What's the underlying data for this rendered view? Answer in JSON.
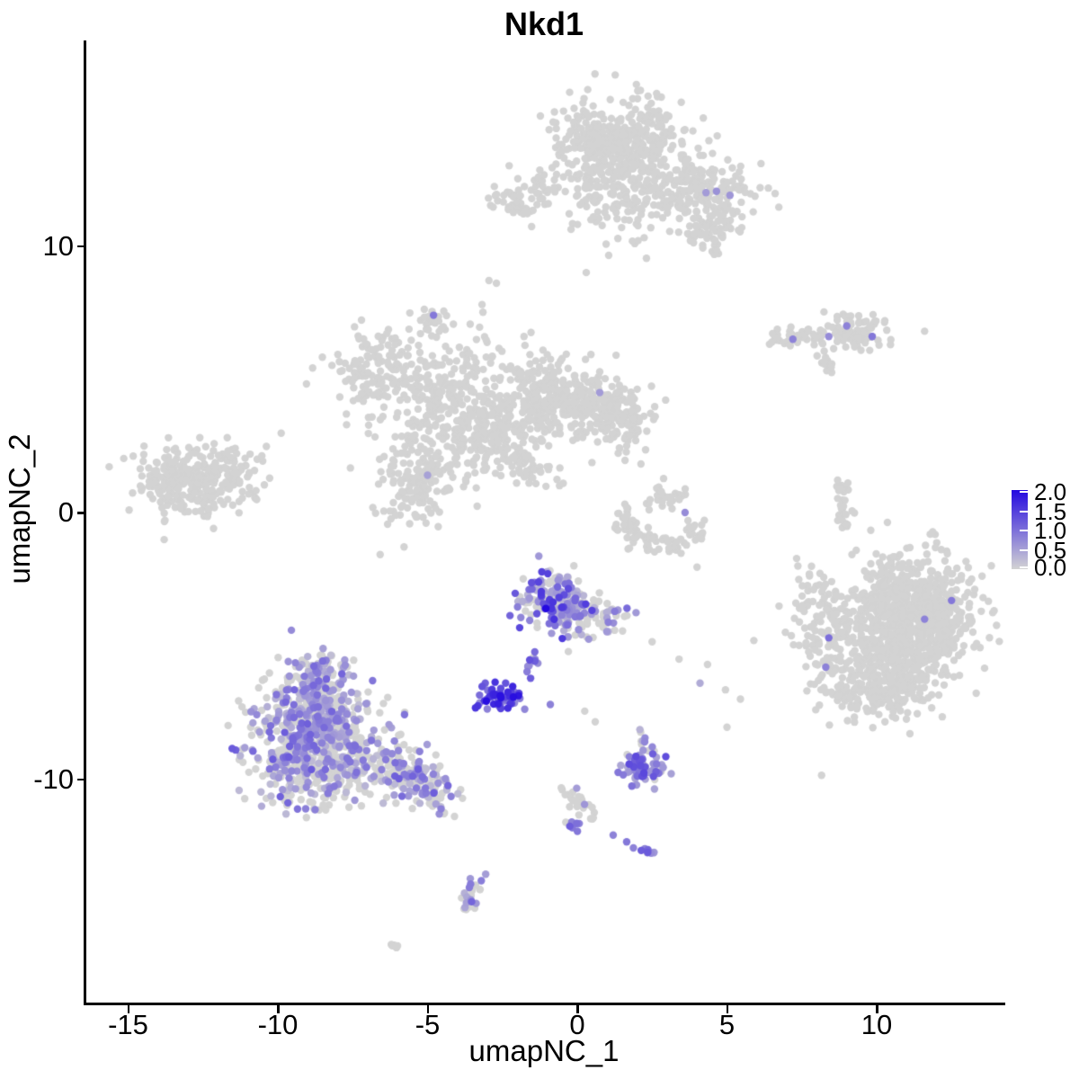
{
  "chart_data": {
    "type": "scatter",
    "title": "Nkd1",
    "xlabel": "umapNC_1",
    "ylabel": "umapNC_2",
    "x_ticks": [
      -15,
      -10,
      -5,
      0,
      5,
      10
    ],
    "x_tick_labels": [
      "-15",
      "-10",
      "-5",
      "0",
      "5",
      "10"
    ],
    "y_ticks": [
      10,
      0,
      -10
    ],
    "y_tick_labels": [
      "10",
      "0",
      "-10"
    ],
    "xlim": [
      -16.4,
      14.2
    ],
    "ylim": [
      -18.4,
      17.7
    ],
    "grid": false,
    "legend_position": "right",
    "legend_tick_labels": [
      "2.0",
      "1.5",
      "1.0",
      "0.5",
      "0.0"
    ],
    "colorscale": {
      "low": "#d3d3d3",
      "high": "#2409e0",
      "domain": [
        0,
        2
      ]
    },
    "point_radius": 4.2,
    "seed": 7,
    "clusters": [
      {
        "name": "top-main-upper",
        "shape": "gauss",
        "cx": 1.5,
        "cy": 14.0,
        "sx": 1.05,
        "sy": 0.75,
        "n": 380,
        "frac": 0,
        "vmin": 0,
        "vmax": 0
      },
      {
        "name": "top-main-right",
        "shape": "gauss",
        "cx": 3.6,
        "cy": 12.2,
        "sx": 1.05,
        "sy": 0.55,
        "n": 200,
        "frac": 0,
        "vmin": 0,
        "vmax": 0
      },
      {
        "name": "top-main-left",
        "shape": "gauss",
        "cx": 0.9,
        "cy": 12.5,
        "sx": 0.6,
        "sy": 0.6,
        "n": 80,
        "frac": 0,
        "vmin": 0,
        "vmax": 0
      },
      {
        "name": "top-left-blob",
        "shape": "gauss",
        "cx": -2.0,
        "cy": 11.7,
        "sx": 0.55,
        "sy": 0.35,
        "n": 45,
        "frac": 0,
        "vmin": 0,
        "vmax": 0
      },
      {
        "name": "top-left-blob2",
        "shape": "gauss",
        "cx": -1.0,
        "cy": 12.4,
        "sx": 0.3,
        "sy": 0.28,
        "n": 20,
        "frac": 0,
        "vmin": 0,
        "vmax": 0
      },
      {
        "name": "top-lower-lobe",
        "shape": "gauss",
        "cx": 4.4,
        "cy": 10.6,
        "sx": 0.55,
        "sy": 0.45,
        "n": 70,
        "frac": 0,
        "vmin": 0,
        "vmax": 0
      },
      {
        "name": "top-sparse-bottom",
        "shape": "gauss",
        "cx": 1.4,
        "cy": 11.2,
        "sx": 1.2,
        "sy": 0.55,
        "n": 60,
        "frac": 0,
        "vmin": 0,
        "vmax": 0
      },
      {
        "name": "small-mid-upper",
        "shape": "gauss",
        "cx": -4.75,
        "cy": 7.2,
        "sx": 0.28,
        "sy": 0.33,
        "n": 22,
        "frac": 0,
        "vmin": 0,
        "vmax": 0
      },
      {
        "name": "midleft-arm-top",
        "shape": "gauss",
        "cx": -6.4,
        "cy": 5.3,
        "sx": 0.85,
        "sy": 0.8,
        "n": 170,
        "frac": 0,
        "vmin": 0,
        "vmax": 0
      },
      {
        "name": "midleft-core",
        "shape": "gauss",
        "cx": -4.0,
        "cy": 3.8,
        "sx": 1.0,
        "sy": 0.9,
        "n": 220,
        "frac": 0,
        "vmin": 0,
        "vmax": 0
      },
      {
        "name": "midleft-node1",
        "shape": "gauss",
        "cx": -0.9,
        "cy": 4.3,
        "sx": 0.8,
        "sy": 0.7,
        "n": 230,
        "frac": 0,
        "vmin": 0,
        "vmax": 0
      },
      {
        "name": "midleft-node2",
        "shape": "gauss",
        "cx": 0.9,
        "cy": 3.9,
        "sx": 0.65,
        "sy": 0.65,
        "n": 150,
        "frac": 0,
        "vmin": 0,
        "vmax": 0
      },
      {
        "name": "midleft-lower",
        "shape": "gauss",
        "cx": -5.3,
        "cy": 1.3,
        "sx": 0.75,
        "sy": 0.9,
        "n": 170,
        "frac": 0,
        "vmin": 0,
        "vmax": 0
      },
      {
        "name": "midleft-mid",
        "shape": "gauss",
        "cx": -2.8,
        "cy": 2.9,
        "sx": 0.7,
        "sy": 0.8,
        "n": 110,
        "frac": 0,
        "vmin": 0,
        "vmax": 0
      },
      {
        "name": "midleft-streak",
        "shape": "line",
        "x1": -2.4,
        "y1": 2.6,
        "x2": -1.1,
        "y2": 0.9,
        "w": 0.18,
        "n": 35,
        "frac": 0,
        "vmin": 0,
        "vmax": 0
      },
      {
        "name": "midleft-right-lobe",
        "shape": "gauss",
        "cx": 1.8,
        "cy": 3.2,
        "sx": 0.4,
        "sy": 0.5,
        "n": 50,
        "frac": 0,
        "vmin": 0,
        "vmax": 0
      },
      {
        "name": "midleft-sparse-top",
        "shape": "gauss",
        "cx": -3.4,
        "cy": 5.7,
        "sx": 1.5,
        "sy": 0.75,
        "n": 70,
        "frac": 0,
        "vmin": 0,
        "vmax": 0
      },
      {
        "name": "midleft-sparse-low",
        "shape": "gauss",
        "cx": -2.0,
        "cy": 1.6,
        "sx": 1.0,
        "sy": 0.55,
        "n": 28,
        "frac": 0,
        "vmin": 0,
        "vmax": 0
      },
      {
        "name": "farleft",
        "shape": "gauss",
        "cx": -12.9,
        "cy": 1.2,
        "sx": 1.05,
        "sy": 0.6,
        "n": 300,
        "frac": 0,
        "vmin": 0,
        "vmax": 0
      },
      {
        "name": "farleft-tail",
        "shape": "gauss",
        "cx": -11.0,
        "cy": 1.7,
        "sx": 0.5,
        "sy": 0.3,
        "n": 22,
        "frac": 0,
        "vmin": 0,
        "vmax": 0
      },
      {
        "name": "right-strip",
        "shape": "line",
        "x1": 6.5,
        "y1": 6.5,
        "x2": 8.2,
        "y2": 6.7,
        "w": 0.18,
        "n": 55,
        "frac": 0,
        "vmin": 0,
        "vmax": 0
      },
      {
        "name": "right-strip-blob",
        "shape": "gauss",
        "cx": 9.3,
        "cy": 6.8,
        "sx": 0.55,
        "sy": 0.35,
        "n": 90,
        "frac": 0,
        "vmin": 0,
        "vmax": 0
      },
      {
        "name": "right-strip-tail",
        "shape": "line",
        "x1": 8.0,
        "y1": 5.9,
        "x2": 8.6,
        "y2": 5.3,
        "w": 0.1,
        "n": 12,
        "frac": 0,
        "vmin": 0,
        "vmax": 0
      },
      {
        "name": "right-vert-strip",
        "shape": "line",
        "x1": 8.75,
        "y1": 1.5,
        "x2": 8.95,
        "y2": -0.6,
        "w": 0.1,
        "n": 22,
        "frac": 0,
        "vmin": 0,
        "vmax": 0
      },
      {
        "name": "right-vert-blob",
        "shape": "gauss",
        "cx": 9.0,
        "cy": 0.3,
        "sx": 0.13,
        "sy": 0.4,
        "n": 10,
        "frac": 0,
        "vmin": 0,
        "vmax": 0
      },
      {
        "name": "right-big-core",
        "shape": "gauss",
        "cx": 11.2,
        "cy": -3.9,
        "sx": 1.15,
        "sy": 1.05,
        "n": 850,
        "frac": 0,
        "vmin": 0,
        "vmax": 0
      },
      {
        "name": "right-big-lower",
        "shape": "gauss",
        "cx": 10.3,
        "cy": -6.4,
        "sx": 0.85,
        "sy": 0.65,
        "n": 280,
        "frac": 0,
        "vmin": 0,
        "vmax": 0
      },
      {
        "name": "right-big-left",
        "shape": "gauss",
        "cx": 8.6,
        "cy": -4.8,
        "sx": 0.55,
        "sy": 1.1,
        "n": 110,
        "frac": 0,
        "vmin": 0,
        "vmax": 0
      },
      {
        "name": "right-big-left-sparse",
        "shape": "gauss",
        "cx": 7.9,
        "cy": -3.4,
        "sx": 0.5,
        "sy": 0.9,
        "n": 40,
        "frac": 0,
        "vmin": 0,
        "vmax": 0
      },
      {
        "name": "center-expr-core",
        "shape": "gauss",
        "cx": -0.75,
        "cy": -3.3,
        "sx": 0.6,
        "sy": 0.6,
        "n": 170,
        "frac": 0.6,
        "vmin": 0.3,
        "vmax": 1.6
      },
      {
        "name": "center-expr-arm",
        "shape": "gauss",
        "cx": 0.55,
        "cy": -3.9,
        "sx": 0.55,
        "sy": 0.42,
        "n": 70,
        "frac": 0.45,
        "vmin": 0.3,
        "vmax": 1.2
      },
      {
        "name": "center-trail",
        "shape": "line",
        "x1": -1.15,
        "y1": -4.8,
        "x2": -1.75,
        "y2": -6.3,
        "w": 0.12,
        "n": 11,
        "frac": 0.85,
        "vmin": 0.5,
        "vmax": 1.3
      },
      {
        "name": "dense-dark-clump",
        "shape": "gauss",
        "cx": -2.6,
        "cy": -6.9,
        "sx": 0.38,
        "sy": 0.24,
        "n": 65,
        "frac": 0.93,
        "vmin": 0.7,
        "vmax": 2.0
      },
      {
        "name": "bottomleft-apex",
        "shape": "gauss",
        "cx": -8.7,
        "cy": -5.9,
        "sx": 0.5,
        "sy": 0.45,
        "n": 55,
        "frac": 0.45,
        "vmin": 0.2,
        "vmax": 1.0
      },
      {
        "name": "bottomleft-top",
        "shape": "gauss",
        "cx": -8.8,
        "cy": -7.3,
        "sx": 0.85,
        "sy": 0.75,
        "n": 260,
        "frac": 0.45,
        "vmin": 0.2,
        "vmax": 1.1
      },
      {
        "name": "bottomleft-left",
        "shape": "gauss",
        "cx": -9.4,
        "cy": -8.9,
        "sx": 0.8,
        "sy": 0.85,
        "n": 280,
        "frac": 0.5,
        "vmin": 0.2,
        "vmax": 1.2
      },
      {
        "name": "bottomleft-mid",
        "shape": "gauss",
        "cx": -7.6,
        "cy": -8.9,
        "sx": 0.95,
        "sy": 0.85,
        "n": 260,
        "frac": 0.42,
        "vmin": 0.2,
        "vmax": 1.0
      },
      {
        "name": "bottomleft-tail",
        "shape": "line",
        "x1": -6.3,
        "y1": -9.5,
        "x2": -4.3,
        "y2": -10.7,
        "w": 0.4,
        "n": 150,
        "frac": 0.45,
        "vmin": 0.2,
        "vmax": 1.2
      },
      {
        "name": "bottomleft-bottom-sparse",
        "shape": "gauss",
        "cx": -8.6,
        "cy": -10.4,
        "sx": 0.7,
        "sy": 0.45,
        "n": 40,
        "frac": 0.3,
        "vmin": 0.2,
        "vmax": 0.9
      },
      {
        "name": "purple-mid-cluster",
        "shape": "gauss",
        "cx": 2.25,
        "cy": -9.6,
        "sx": 0.42,
        "sy": 0.3,
        "n": 70,
        "frac": 0.85,
        "vmin": 0.4,
        "vmax": 1.4
      },
      {
        "name": "purple-mid-top",
        "shape": "gauss",
        "cx": 2.15,
        "cy": -8.55,
        "sx": 0.12,
        "sy": 0.22,
        "n": 8,
        "frac": 0.5,
        "vmin": 0.3,
        "vmax": 0.8
      },
      {
        "name": "bottom-chain",
        "shape": "line",
        "x1": -0.6,
        "y1": -10.3,
        "x2": 0.75,
        "y2": -11.55,
        "w": 0.14,
        "n": 26,
        "frac": 0.1,
        "vmin": 0.3,
        "vmax": 0.7
      },
      {
        "name": "chain-purple1",
        "shape": "gauss",
        "cx": -0.15,
        "cy": -11.75,
        "sx": 0.16,
        "sy": 0.12,
        "n": 7,
        "frac": 0.9,
        "vmin": 0.5,
        "vmax": 1.2
      },
      {
        "name": "chain-purple2",
        "shape": "gauss",
        "cx": 2.3,
        "cy": -12.65,
        "sx": 0.18,
        "sy": 0.13,
        "n": 10,
        "frac": 0.9,
        "vmin": 0.5,
        "vmax": 1.3
      },
      {
        "name": "bottom-hook",
        "shape": "line",
        "x1": -3.4,
        "y1": -13.5,
        "x2": -3.75,
        "y2": -14.9,
        "w": 0.16,
        "n": 26,
        "frac": 0.6,
        "vmin": 0.3,
        "vmax": 1.1
      },
      {
        "name": "bottom-dash",
        "shape": "line",
        "x1": -6.35,
        "y1": -16.2,
        "x2": -5.95,
        "y2": -16.3,
        "w": 0.07,
        "n": 7,
        "frac": 0,
        "vmin": 0,
        "vmax": 0
      },
      {
        "name": "crescent",
        "shape": "arc",
        "cx": 2.9,
        "cy": 0.0,
        "rx": 1.4,
        "ry": 1.2,
        "a1": 180,
        "a2": 330,
        "w": 0.22,
        "n": 90,
        "frac": 0,
        "vmin": 0,
        "vmax": 0
      },
      {
        "name": "crescent-top-blob",
        "shape": "gauss",
        "cx": 3.1,
        "cy": 0.65,
        "sx": 0.33,
        "sy": 0.25,
        "n": 28,
        "frac": 0,
        "vmin": 0,
        "vmax": 0
      }
    ],
    "points": [
      [
        4.3,
        12.0,
        0.55
      ],
      [
        4.65,
        12.05,
        0.65
      ],
      [
        5.1,
        11.9,
        0.6
      ],
      [
        -4.8,
        7.4,
        0.9
      ],
      [
        0.75,
        4.5,
        0.55
      ],
      [
        -5.0,
        1.4,
        0.5
      ],
      [
        -1.05,
        -3.6,
        2.0
      ],
      [
        7.2,
        6.5,
        0.8
      ],
      [
        8.4,
        6.6,
        0.7
      ],
      [
        9.0,
        7.0,
        0.8
      ],
      [
        9.85,
        6.6,
        0.9
      ],
      [
        11.6,
        6.8,
        0
      ],
      [
        8.4,
        -4.7,
        1.0
      ],
      [
        8.3,
        -5.8,
        0.8
      ],
      [
        11.6,
        -4.0,
        0.8
      ],
      [
        12.5,
        -3.3,
        0.9
      ],
      [
        3.6,
        0.0,
        0.7
      ],
      [
        2.4,
        0.1,
        0
      ],
      [
        4.0,
        -2.05,
        0
      ],
      [
        -0.9,
        -7.2,
        0.8
      ],
      [
        0.25,
        -7.45,
        0
      ],
      [
        0.6,
        -7.85,
        0
      ],
      [
        2.5,
        -4.85,
        0
      ],
      [
        3.4,
        -5.5,
        0
      ],
      [
        4.35,
        -5.7,
        0
      ],
      [
        4.1,
        -6.4,
        0.4
      ],
      [
        4.95,
        -6.65,
        0
      ],
      [
        5.45,
        -7.0,
        0
      ],
      [
        5.0,
        -8.05,
        0
      ],
      [
        1.2,
        -12.1,
        0.8
      ],
      [
        1.65,
        -12.35,
        0.9
      ],
      [
        -4.45,
        -11.3,
        0
      ],
      [
        -4.1,
        -11.4,
        0
      ],
      [
        -2.95,
        8.7,
        0
      ],
      [
        -2.7,
        8.6,
        0
      ],
      [
        0.3,
        9.0,
        0
      ]
    ]
  }
}
